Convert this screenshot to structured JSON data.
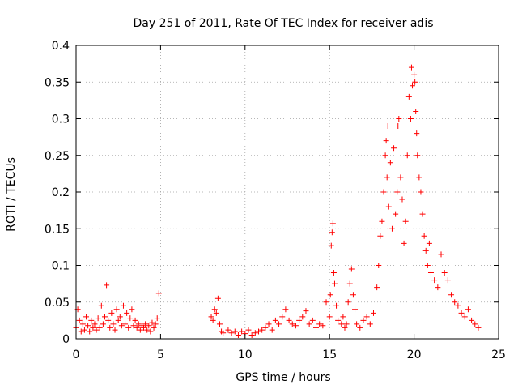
{
  "chart_data": {
    "type": "scatter",
    "title": "Day 251 of 2011, Rate Of TEC Index for receiver adis",
    "xlabel": "GPS time / hours",
    "ylabel": "ROTI / TECUs",
    "xlim": [
      0,
      25
    ],
    "ylim": [
      0,
      0.4
    ],
    "grid": true,
    "marker": "+",
    "marker_color": "#ff0000",
    "xticks": [
      {
        "value": 0,
        "label": "0"
      },
      {
        "value": 5,
        "label": "5"
      },
      {
        "value": 10,
        "label": "10"
      },
      {
        "value": 15,
        "label": "15"
      },
      {
        "value": 20,
        "label": "20"
      },
      {
        "value": 25,
        "label": "25"
      }
    ],
    "yticks": [
      {
        "value": 0,
        "label": "0"
      },
      {
        "value": 0.05,
        "label": "0.05"
      },
      {
        "value": 0.1,
        "label": "0.1"
      },
      {
        "value": 0.15,
        "label": "0.15"
      },
      {
        "value": 0.2,
        "label": "0.2"
      },
      {
        "value": 0.25,
        "label": "0.25"
      },
      {
        "value": 0.3,
        "label": "0.3"
      },
      {
        "value": 0.35,
        "label": "0.35"
      },
      {
        "value": 0.4,
        "label": "0.4"
      }
    ],
    "series": [
      {
        "name": "ROTI",
        "points": [
          [
            0.0,
            0.015
          ],
          [
            0.1,
            0.04
          ],
          [
            0.2,
            0.025
          ],
          [
            0.3,
            0.01
          ],
          [
            0.4,
            0.02
          ],
          [
            0.5,
            0.012
          ],
          [
            0.6,
            0.03
          ],
          [
            0.7,
            0.018
          ],
          [
            0.8,
            0.01
          ],
          [
            0.9,
            0.025
          ],
          [
            1.0,
            0.015
          ],
          [
            1.1,
            0.02
          ],
          [
            1.2,
            0.012
          ],
          [
            1.3,
            0.028
          ],
          [
            1.4,
            0.015
          ],
          [
            1.5,
            0.045
          ],
          [
            1.6,
            0.02
          ],
          [
            1.7,
            0.03
          ],
          [
            1.8,
            0.073
          ],
          [
            1.9,
            0.025
          ],
          [
            2.0,
            0.015
          ],
          [
            2.1,
            0.035
          ],
          [
            2.2,
            0.02
          ],
          [
            2.3,
            0.012
          ],
          [
            2.4,
            0.04
          ],
          [
            2.5,
            0.025
          ],
          [
            2.6,
            0.03
          ],
          [
            2.7,
            0.018
          ],
          [
            2.8,
            0.045
          ],
          [
            2.9,
            0.02
          ],
          [
            3.0,
            0.035
          ],
          [
            3.1,
            0.015
          ],
          [
            3.2,
            0.028
          ],
          [
            3.3,
            0.04
          ],
          [
            3.4,
            0.018
          ],
          [
            3.5,
            0.025
          ],
          [
            3.6,
            0.015
          ],
          [
            3.7,
            0.02
          ],
          [
            3.8,
            0.012
          ],
          [
            3.9,
            0.018
          ],
          [
            4.0,
            0.015
          ],
          [
            4.1,
            0.02
          ],
          [
            4.2,
            0.012
          ],
          [
            4.3,
            0.018
          ],
          [
            4.4,
            0.01
          ],
          [
            4.5,
            0.022
          ],
          [
            4.6,
            0.015
          ],
          [
            4.7,
            0.02
          ],
          [
            4.8,
            0.028
          ],
          [
            4.9,
            0.062
          ],
          [
            8.0,
            0.03
          ],
          [
            8.1,
            0.025
          ],
          [
            8.2,
            0.04
          ],
          [
            8.3,
            0.035
          ],
          [
            8.4,
            0.055
          ],
          [
            8.5,
            0.02
          ],
          [
            8.6,
            0.01
          ],
          [
            8.7,
            0.008
          ],
          [
            9.0,
            0.012
          ],
          [
            9.2,
            0.008
          ],
          [
            9.4,
            0.01
          ],
          [
            9.6,
            0.005
          ],
          [
            9.8,
            0.01
          ],
          [
            10.0,
            0.007
          ],
          [
            10.2,
            0.012
          ],
          [
            10.4,
            0.005
          ],
          [
            10.6,
            0.008
          ],
          [
            10.8,
            0.01
          ],
          [
            11.0,
            0.012
          ],
          [
            11.2,
            0.015
          ],
          [
            11.4,
            0.02
          ],
          [
            11.6,
            0.012
          ],
          [
            11.8,
            0.025
          ],
          [
            12.0,
            0.02
          ],
          [
            12.2,
            0.03
          ],
          [
            12.4,
            0.04
          ],
          [
            12.6,
            0.025
          ],
          [
            12.8,
            0.02
          ],
          [
            13.0,
            0.018
          ],
          [
            13.2,
            0.025
          ],
          [
            13.4,
            0.03
          ],
          [
            13.6,
            0.038
          ],
          [
            13.8,
            0.02
          ],
          [
            14.0,
            0.025
          ],
          [
            14.2,
            0.015
          ],
          [
            14.4,
            0.02
          ],
          [
            14.6,
            0.018
          ],
          [
            14.8,
            0.05
          ],
          [
            15.0,
            0.03
          ],
          [
            15.05,
            0.06
          ],
          [
            15.1,
            0.127
          ],
          [
            15.15,
            0.145
          ],
          [
            15.2,
            0.157
          ],
          [
            15.25,
            0.09
          ],
          [
            15.3,
            0.075
          ],
          [
            15.4,
            0.045
          ],
          [
            15.5,
            0.025
          ],
          [
            15.7,
            0.02
          ],
          [
            15.8,
            0.03
          ],
          [
            15.9,
            0.015
          ],
          [
            16.0,
            0.02
          ],
          [
            16.1,
            0.05
          ],
          [
            16.2,
            0.075
          ],
          [
            16.3,
            0.095
          ],
          [
            16.4,
            0.06
          ],
          [
            16.5,
            0.04
          ],
          [
            16.6,
            0.02
          ],
          [
            16.8,
            0.015
          ],
          [
            17.0,
            0.025
          ],
          [
            17.2,
            0.03
          ],
          [
            17.4,
            0.02
          ],
          [
            17.6,
            0.035
          ],
          [
            17.8,
            0.07
          ],
          [
            17.9,
            0.1
          ],
          [
            18.0,
            0.14
          ],
          [
            18.1,
            0.16
          ],
          [
            18.2,
            0.2
          ],
          [
            18.3,
            0.25
          ],
          [
            18.35,
            0.27
          ],
          [
            18.4,
            0.22
          ],
          [
            18.45,
            0.29
          ],
          [
            18.5,
            0.18
          ],
          [
            18.6,
            0.24
          ],
          [
            18.7,
            0.15
          ],
          [
            18.8,
            0.26
          ],
          [
            18.9,
            0.17
          ],
          [
            19.0,
            0.2
          ],
          [
            19.05,
            0.29
          ],
          [
            19.1,
            0.3
          ],
          [
            19.2,
            0.22
          ],
          [
            19.3,
            0.19
          ],
          [
            19.4,
            0.13
          ],
          [
            19.5,
            0.16
          ],
          [
            19.6,
            0.25
          ],
          [
            19.7,
            0.33
          ],
          [
            19.8,
            0.3
          ],
          [
            19.85,
            0.37
          ],
          [
            19.9,
            0.345
          ],
          [
            20.0,
            0.36
          ],
          [
            20.05,
            0.35
          ],
          [
            20.1,
            0.31
          ],
          [
            20.15,
            0.28
          ],
          [
            20.2,
            0.25
          ],
          [
            20.3,
            0.22
          ],
          [
            20.4,
            0.2
          ],
          [
            20.5,
            0.17
          ],
          [
            20.6,
            0.14
          ],
          [
            20.7,
            0.12
          ],
          [
            20.8,
            0.1
          ],
          [
            20.9,
            0.13
          ],
          [
            21.0,
            0.09
          ],
          [
            21.2,
            0.08
          ],
          [
            21.4,
            0.07
          ],
          [
            21.6,
            0.115
          ],
          [
            21.8,
            0.09
          ],
          [
            22.0,
            0.08
          ],
          [
            22.2,
            0.06
          ],
          [
            22.4,
            0.05
          ],
          [
            22.6,
            0.045
          ],
          [
            22.8,
            0.035
          ],
          [
            23.0,
            0.03
          ],
          [
            23.2,
            0.04
          ],
          [
            23.4,
            0.025
          ],
          [
            23.6,
            0.02
          ],
          [
            23.8,
            0.015
          ]
        ]
      }
    ]
  }
}
